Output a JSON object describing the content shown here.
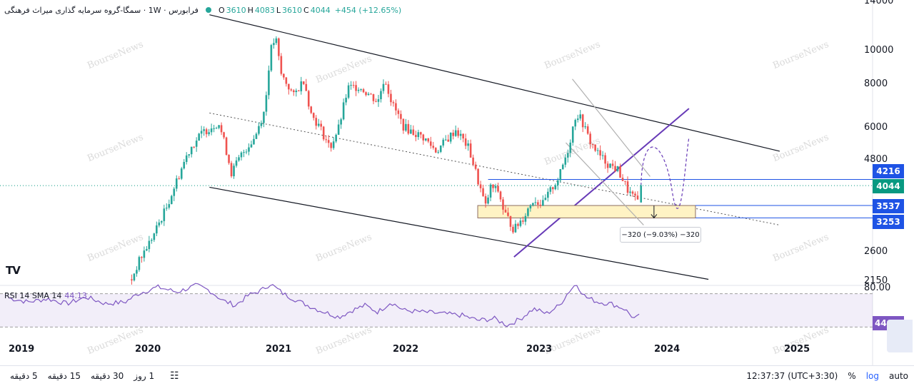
{
  "legend": {
    "title": "فرابورس · 1W · سمگا-گروه سرمایه گذاری میراث فرهنگی",
    "open_key": "O",
    "open": "3610",
    "high_key": "H",
    "high": "4083",
    "low_key": "L",
    "low": "3610",
    "close_key": "C",
    "close": "4044",
    "change": "+454 (+12.65%)"
  },
  "rsi": {
    "label": "RSI 14 SMA 14",
    "value": "44.13",
    "tag": "44.13",
    "ylim": [
      20,
      80
    ],
    "upper_band": 70,
    "lower_band": 30
  },
  "watermark": "BourseNews",
  "logo": "TV",
  "price_tags": [
    {
      "value": "4216",
      "color": "#1e53e5"
    },
    {
      "value": "4044",
      "color": "#089981"
    },
    {
      "value": "3537",
      "color": "#1e53e5"
    },
    {
      "value": "3253",
      "color": "#1e53e5"
    }
  ],
  "axis": {
    "price_ticks": [
      "14000",
      "10000",
      "8000",
      "6000",
      "4800",
      "2600",
      "2150"
    ],
    "rsi_top_tick": "80.00",
    "scale": "log"
  },
  "years": [
    "2019",
    "2020",
    "2021",
    "2022",
    "2023",
    "2024",
    "2025"
  ],
  "measure": {
    "label": "−320 (−9.03%) −320"
  },
  "toolbar": {
    "timeframes": [
      "5 دقیقه",
      "15 دقیقه",
      "30 دقیقه",
      "1 روز"
    ],
    "clock": "12:37:37 (UTC+3:30)",
    "percent": "%",
    "log": "log",
    "auto": "auto"
  },
  "colors": {
    "up": "#26a69a",
    "down": "#ef5350",
    "channel": "#131722",
    "trendline": "#673ab7",
    "rsi": "#7e57c2",
    "zone": "#fff3c4"
  },
  "chart_data": {
    "type": "candlestick",
    "x_unit": "year",
    "x_range": [
      2019.0,
      2025.4
    ],
    "ylim": [
      2150,
      14000
    ],
    "yscale": "log",
    "path": [
      [
        2019.95,
        2150
      ],
      [
        2020.0,
        2400
      ],
      [
        2020.12,
        2900
      ],
      [
        2020.22,
        3500
      ],
      [
        2020.3,
        4200
      ],
      [
        2020.4,
        5200
      ],
      [
        2020.5,
        5800
      ],
      [
        2020.62,
        6200
      ],
      [
        2020.72,
        4400
      ],
      [
        2020.8,
        5000
      ],
      [
        2020.9,
        5600
      ],
      [
        2020.98,
        6800
      ],
      [
        2021.02,
        10000
      ],
      [
        2021.06,
        11000
      ],
      [
        2021.1,
        8600
      ],
      [
        2021.15,
        8000
      ],
      [
        2021.2,
        7400
      ],
      [
        2021.28,
        8300
      ],
      [
        2021.33,
        6600
      ],
      [
        2021.4,
        6000
      ],
      [
        2021.48,
        5200
      ],
      [
        2021.55,
        6000
      ],
      [
        2021.62,
        7800
      ],
      [
        2021.7,
        7900
      ],
      [
        2021.78,
        7500
      ],
      [
        2021.85,
        7100
      ],
      [
        2021.9,
        8400
      ],
      [
        2021.96,
        7000
      ],
      [
        2022.05,
        6000
      ],
      [
        2022.12,
        5800
      ],
      [
        2022.2,
        5600
      ],
      [
        2022.3,
        5100
      ],
      [
        2022.4,
        5600
      ],
      [
        2022.45,
        5900
      ],
      [
        2022.55,
        5200
      ],
      [
        2022.62,
        4200
      ],
      [
        2022.68,
        3500
      ],
      [
        2022.72,
        4000
      ],
      [
        2022.78,
        3900
      ],
      [
        2022.82,
        3400
      ],
      [
        2022.9,
        3000
      ],
      [
        2022.98,
        3300
      ],
      [
        2023.05,
        3700
      ],
      [
        2023.12,
        3550
      ],
      [
        2023.18,
        3900
      ],
      [
        2023.25,
        4300
      ],
      [
        2023.32,
        5200
      ],
      [
        2023.38,
        6600
      ],
      [
        2023.42,
        6300
      ],
      [
        2023.48,
        5500
      ],
      [
        2023.55,
        5000
      ],
      [
        2023.62,
        4700
      ],
      [
        2023.7,
        4500
      ],
      [
        2023.78,
        3900
      ],
      [
        2023.85,
        3610
      ],
      [
        2023.88,
        4044
      ]
    ],
    "last": {
      "open": 3610,
      "high": 4083,
      "low": 3610,
      "close": 4044,
      "change": 454,
      "change_pct": 12.65
    },
    "rsi_path": [
      [
        2019.0,
        65
      ],
      [
        2019.15,
        60
      ],
      [
        2019.3,
        64
      ],
      [
        2019.45,
        58
      ],
      [
        2019.6,
        66
      ],
      [
        2019.75,
        58
      ],
      [
        2019.9,
        60
      ],
      [
        2020.0,
        70
      ],
      [
        2020.15,
        78
      ],
      [
        2020.3,
        72
      ],
      [
        2020.45,
        80
      ],
      [
        2020.55,
        74
      ],
      [
        2020.65,
        62
      ],
      [
        2020.75,
        56
      ],
      [
        2020.85,
        68
      ],
      [
        2020.95,
        74
      ],
      [
        2021.02,
        82
      ],
      [
        2021.12,
        70
      ],
      [
        2021.25,
        60
      ],
      [
        2021.4,
        50
      ],
      [
        2021.55,
        42
      ],
      [
        2021.65,
        50
      ],
      [
        2021.75,
        56
      ],
      [
        2021.85,
        48
      ],
      [
        2021.95,
        60
      ],
      [
        2022.05,
        50
      ],
      [
        2022.2,
        48
      ],
      [
        2022.35,
        46
      ],
      [
        2022.5,
        44
      ],
      [
        2022.62,
        38
      ],
      [
        2022.75,
        40
      ],
      [
        2022.85,
        32
      ],
      [
        2022.95,
        40
      ],
      [
        2023.05,
        52
      ],
      [
        2023.15,
        46
      ],
      [
        2023.25,
        56
      ],
      [
        2023.32,
        72
      ],
      [
        2023.38,
        82
      ],
      [
        2023.45,
        66
      ],
      [
        2023.55,
        60
      ],
      [
        2023.65,
        58
      ],
      [
        2023.75,
        52
      ],
      [
        2023.83,
        40
      ],
      [
        2023.88,
        44
      ]
    ],
    "annotations": {
      "upper_channel": [
        [
          2020.55,
          12800
        ],
        [
          2024.95,
          5100
        ]
      ],
      "lower_channel": [
        [
          2020.55,
          4000
        ],
        [
          2024.4,
          2150
        ]
      ],
      "mid_dotted": [
        [
          2020.55,
          6600
        ],
        [
          2024.95,
          3100
        ]
      ],
      "purple_trendline": [
        [
          2022.9,
          2500
        ],
        [
          2024.25,
          6800
        ]
      ],
      "zone": {
        "x": [
          2022.62,
          2024.3
        ],
        "y": [
          3253,
          3537
        ]
      },
      "hline_4216": 4216,
      "projection": [
        [
          2023.88,
          4044
        ],
        [
          2024.0,
          5100
        ],
        [
          2024.12,
          3900
        ],
        [
          2024.25,
          5600
        ]
      ]
    }
  }
}
